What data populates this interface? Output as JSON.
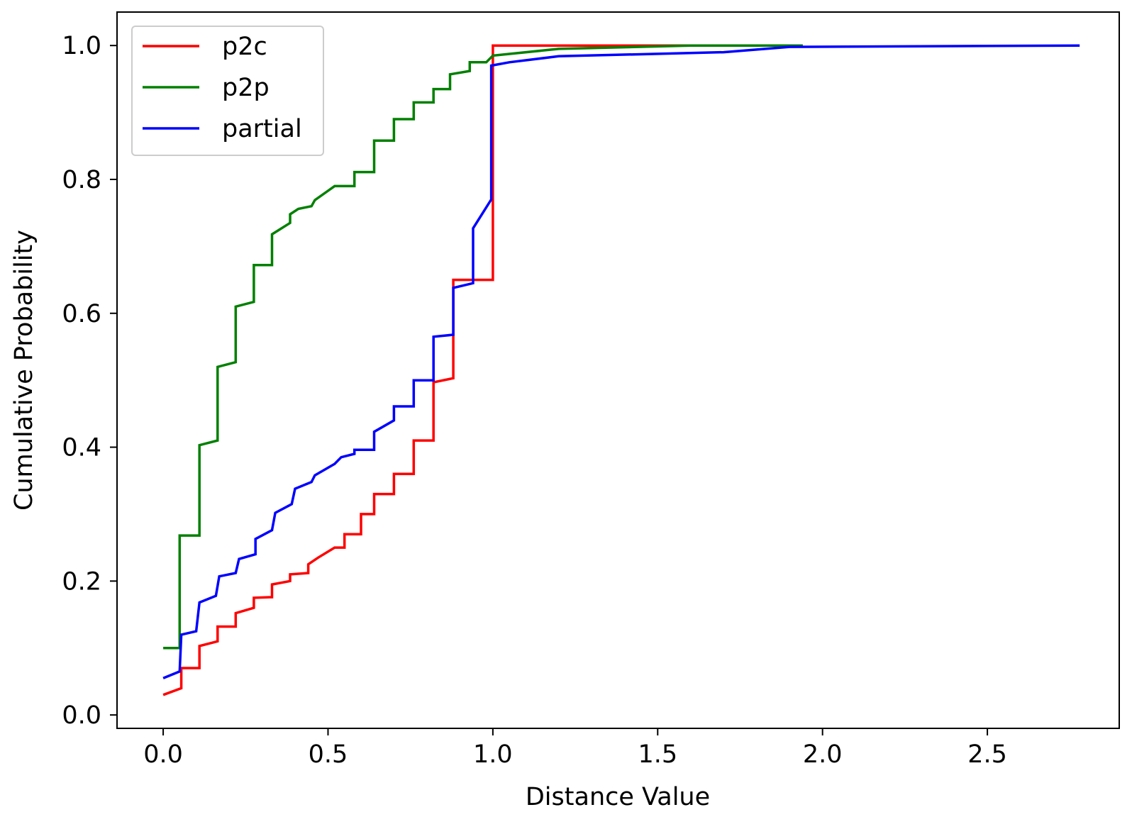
{
  "chart_data": {
    "type": "line",
    "title": "",
    "xlabel": "Distance Value",
    "ylabel": "Cumulative Probability",
    "xlim": [
      -0.14,
      2.9
    ],
    "ylim": [
      -0.02,
      1.05
    ],
    "xticks": [
      0.0,
      0.5,
      1.0,
      1.5,
      2.0,
      2.5
    ],
    "xtick_labels": [
      "0.0",
      "0.5",
      "1.0",
      "1.5",
      "2.0",
      "2.5"
    ],
    "yticks": [
      0.0,
      0.2,
      0.4,
      0.6,
      0.8,
      1.0
    ],
    "ytick_labels": [
      "0.0",
      "0.2",
      "0.4",
      "0.6",
      "0.8",
      "1.0"
    ],
    "grid": false,
    "legend_position": "top-left",
    "series": [
      {
        "name": "p2c",
        "color": "#ff0000",
        "x": [
          0.0,
          0.055,
          0.055,
          0.11,
          0.11,
          0.165,
          0.165,
          0.22,
          0.22,
          0.275,
          0.275,
          0.33,
          0.33,
          0.385,
          0.385,
          0.44,
          0.44,
          0.47,
          0.52,
          0.55,
          0.55,
          0.6,
          0.6,
          0.64,
          0.64,
          0.7,
          0.7,
          0.76,
          0.76,
          0.82,
          0.82,
          0.88,
          0.88,
          0.94,
          0.94,
          1.0,
          1.0,
          1.94
        ],
        "y": [
          0.03,
          0.04,
          0.07,
          0.07,
          0.103,
          0.11,
          0.132,
          0.132,
          0.152,
          0.16,
          0.175,
          0.176,
          0.195,
          0.2,
          0.21,
          0.212,
          0.225,
          0.235,
          0.25,
          0.25,
          0.27,
          0.27,
          0.3,
          0.3,
          0.33,
          0.33,
          0.36,
          0.36,
          0.41,
          0.41,
          0.497,
          0.503,
          0.65,
          0.65,
          0.65,
          0.65,
          1.0,
          1.0
        ]
      },
      {
        "name": "p2p",
        "color": "#008000",
        "x": [
          0.0,
          0.05,
          0.05,
          0.11,
          0.11,
          0.165,
          0.165,
          0.22,
          0.22,
          0.275,
          0.275,
          0.33,
          0.33,
          0.385,
          0.385,
          0.41,
          0.45,
          0.46,
          0.5,
          0.52,
          0.58,
          0.58,
          0.64,
          0.64,
          0.7,
          0.7,
          0.76,
          0.76,
          0.82,
          0.82,
          0.87,
          0.87,
          0.93,
          0.93,
          0.98,
          1.0,
          1.2,
          1.6,
          1.94
        ],
        "y": [
          0.1,
          0.1,
          0.268,
          0.268,
          0.403,
          0.41,
          0.52,
          0.527,
          0.61,
          0.617,
          0.672,
          0.672,
          0.718,
          0.735,
          0.748,
          0.756,
          0.76,
          0.769,
          0.783,
          0.79,
          0.79,
          0.811,
          0.811,
          0.858,
          0.858,
          0.89,
          0.89,
          0.915,
          0.915,
          0.935,
          0.935,
          0.957,
          0.962,
          0.975,
          0.975,
          0.985,
          0.995,
          1.0,
          1.0
        ]
      },
      {
        "name": "partial",
        "color": "#0000ff",
        "x": [
          0.0,
          0.05,
          0.055,
          0.1,
          0.11,
          0.16,
          0.17,
          0.22,
          0.23,
          0.28,
          0.28,
          0.33,
          0.34,
          0.39,
          0.4,
          0.45,
          0.46,
          0.52,
          0.54,
          0.58,
          0.58,
          0.64,
          0.64,
          0.7,
          0.7,
          0.76,
          0.76,
          0.82,
          0.82,
          0.88,
          0.88,
          0.94,
          0.94,
          0.995,
          0.995,
          1.05,
          1.2,
          1.7,
          1.9,
          2.78
        ],
        "y": [
          0.055,
          0.065,
          0.12,
          0.125,
          0.168,
          0.178,
          0.207,
          0.212,
          0.233,
          0.24,
          0.263,
          0.276,
          0.302,
          0.315,
          0.338,
          0.348,
          0.358,
          0.375,
          0.385,
          0.39,
          0.396,
          0.396,
          0.423,
          0.44,
          0.461,
          0.461,
          0.5,
          0.5,
          0.565,
          0.568,
          0.638,
          0.645,
          0.727,
          0.77,
          0.97,
          0.975,
          0.984,
          0.99,
          0.998,
          1.0
        ]
      }
    ]
  }
}
